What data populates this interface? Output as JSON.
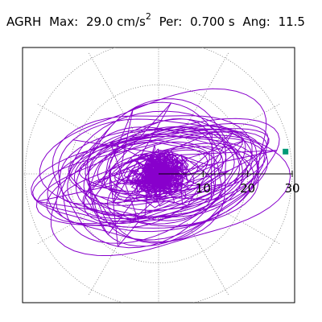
{
  "header": {
    "station": "AGRH",
    "max_label": "Max:",
    "max_value": "29.0 cm/s",
    "max_exp": "2",
    "per_label": "Per:",
    "per_value": "0.700 s",
    "ang_label": "Ang:",
    "ang_value": "11.5"
  },
  "chart_data": {
    "type": "polar-orbit",
    "radial_ticks": [
      "10",
      "20",
      "30"
    ],
    "radial_values": [
      10,
      20,
      30
    ],
    "rmax": 30,
    "grid": "dotted",
    "angular_gridlines_deg": [
      0,
      30,
      60,
      90,
      120,
      150,
      180,
      210,
      240,
      270,
      300,
      330
    ],
    "max_amplitude": 29.0,
    "period_s": 0.7,
    "angle_deg": 11.5,
    "trace_color": "#8800cc",
    "marker_color": "#009977",
    "marker_point": [
      28.5,
      5.0
    ]
  }
}
